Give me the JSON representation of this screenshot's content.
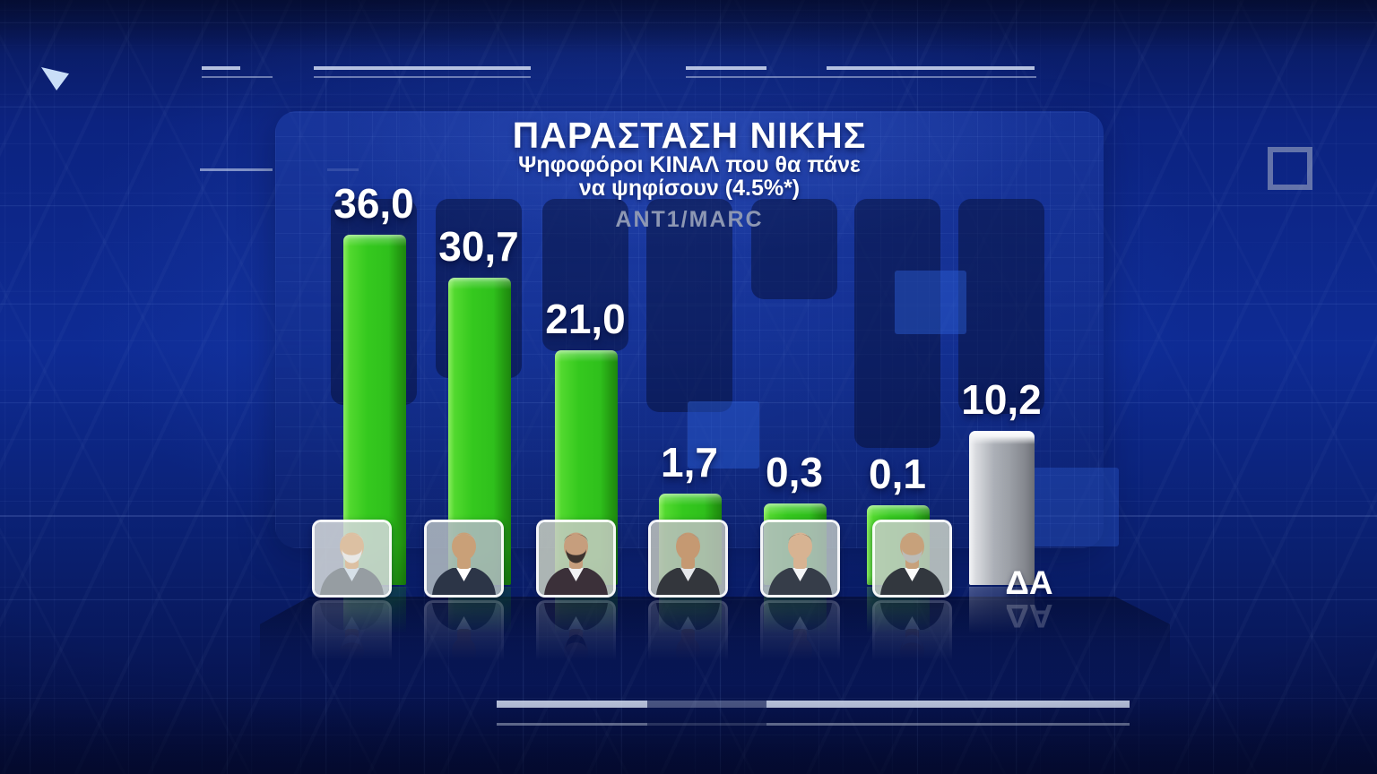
{
  "chart_data": {
    "type": "bar",
    "title": "ΠΑΡΑΣΤΑΣΗ ΝΙΚΗΣ",
    "subtitle": [
      "Ψηφοφόροι ΚΙΝΑΛ που θα πάνε",
      "να ψηφίσουν (4.5%*)"
    ],
    "source": "ANT1/MARC",
    "categories": [
      "candidate-1",
      "candidate-2",
      "candidate-3",
      "candidate-4",
      "candidate-5",
      "candidate-6",
      "ΔΑ"
    ],
    "values": [
      36.0,
      30.7,
      21.0,
      1.7,
      0.3,
      0.1,
      10.2
    ],
    "value_labels": [
      "36,0",
      "30,7",
      "21,0",
      "1,7",
      "0,3",
      "0,1",
      "10,2"
    ],
    "na_label": "ΔΑ",
    "legend": "none",
    "axis": "none",
    "ylim": [
      0,
      40
    ],
    "colors": {
      "candidate_bar": "#2fc01c",
      "na_bar": "#a3a7ae",
      "value_text": "#ffffff",
      "title_text": "#ffffff",
      "source_text": "#8d97b3",
      "background": "#0e2b94"
    }
  },
  "candidates": [
    {
      "id": "candidate-1",
      "palette": {
        "bg": "#d2d6d9",
        "skin": "#dcc0a2",
        "hair": "#ded7ca",
        "beard": "#e8e8e6",
        "suit": "#969da2",
        "shirt": "#d6e0e8"
      }
    },
    {
      "id": "candidate-2",
      "palette": {
        "bg": "#adb6bd",
        "skin": "#c9a078",
        "hair": "#b6bcc2",
        "beard": "transparent",
        "suit": "#2c3547",
        "shirt": "#ffffff"
      }
    },
    {
      "id": "candidate-3",
      "palette": {
        "bg": "#c2c9bd",
        "skin": "#c69e7d",
        "hair": "#352e2b",
        "beard": "#3c332f",
        "suit": "#3b3039",
        "shirt": "#f2f2f4"
      }
    },
    {
      "id": "candidate-4",
      "palette": {
        "bg": "#b9beba",
        "skin": "#c59972",
        "hair": "#8e8e92",
        "beard": "transparent",
        "suit": "#33363c",
        "shirt": "#e6e8eb"
      }
    },
    {
      "id": "candidate-5",
      "palette": {
        "bg": "#b3bcbf",
        "skin": "#d7b392",
        "hair": "#5f5244",
        "beard": "transparent",
        "suit": "#363d49",
        "shirt": "#f4f5f7"
      }
    },
    {
      "id": "candidate-6",
      "palette": {
        "bg": "#c4ccc3",
        "skin": "#c7a17b",
        "hair": "#b5b5b2",
        "beard": "#bbbcb8",
        "suit": "#32373e",
        "shirt": "#fafafa"
      }
    }
  ]
}
